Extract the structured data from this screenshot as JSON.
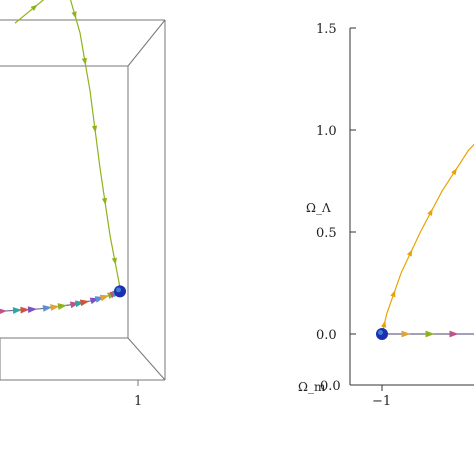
{
  "colors": {
    "axis": "#333333",
    "box": "#777777",
    "green_orbit": "#8fb31a",
    "orange_orbit": "#e8a400",
    "fixed_point": "#1c2fb0",
    "fixed_point_inner": "#3b7fd6",
    "marker_palette": [
      "#5b8fd6",
      "#e2a03a",
      "#8fb31a",
      "#c2508a",
      "#2fa7a0",
      "#d64f3a",
      "#7a52c7"
    ]
  },
  "chart_data": [
    {
      "type": "line",
      "subtype": "3d-phase-portrait",
      "title": "",
      "xlabel": "",
      "ylabel": "",
      "x_ticks": [
        "1"
      ],
      "box_3d": true,
      "series": [
        {
          "color_key": "green_orbit",
          "points": [
            [
              -0.95,
              1.45
            ],
            [
              -0.55,
              1.62
            ],
            [
              -0.4,
              1.58
            ],
            [
              -0.3,
              1.4
            ],
            [
              -0.2,
              1.1
            ],
            [
              -0.1,
              0.7
            ],
            [
              0.0,
              0.35
            ],
            [
              0.1,
              0.08
            ]
          ]
        },
        {
          "color_key": "marker_palette",
          "points": [
            [
              -1.3,
              -0.05
            ],
            [
              -1.0,
              -0.04
            ],
            [
              -0.7,
              -0.03
            ],
            [
              -0.4,
              -0.01
            ],
            [
              -0.2,
              0.01
            ],
            [
              0.0,
              0.04
            ],
            [
              0.1,
              0.06
            ]
          ]
        }
      ],
      "fixed_points": [
        [
          0.1,
          0.06
        ]
      ]
    },
    {
      "type": "line",
      "subtype": "phase-portrait",
      "title": "",
      "xlabel": "Ω_m",
      "ylabel": "Ω_Λ",
      "xlim": [
        -1,
        0.45
      ],
      "ylim": [
        0,
        1.5
      ],
      "x_ticks": [
        "−1"
      ],
      "y_ticks": [
        "0.0",
        "0.5",
        "1.0",
        "1.5"
      ],
      "y_bottom_label": "0.0",
      "series": [
        {
          "color_key": "orange_orbit",
          "points": [
            [
              -1.0,
              0.0
            ],
            [
              -0.98,
              0.1
            ],
            [
              -0.92,
              0.3
            ],
            [
              -0.84,
              0.5
            ],
            [
              -0.75,
              0.7
            ],
            [
              -0.64,
              0.9
            ],
            [
              -0.52,
              1.05
            ],
            [
              -0.4,
              1.15
            ]
          ]
        },
        {
          "color_key": "marker_palette",
          "points": [
            [
              -1.0,
              0.0
            ],
            [
              -0.6,
              0.0
            ],
            [
              -0.2,
              0.0
            ],
            [
              0.2,
              0.0
            ]
          ]
        }
      ],
      "fixed_points": [
        [
          -1.0,
          0.0
        ]
      ]
    }
  ]
}
